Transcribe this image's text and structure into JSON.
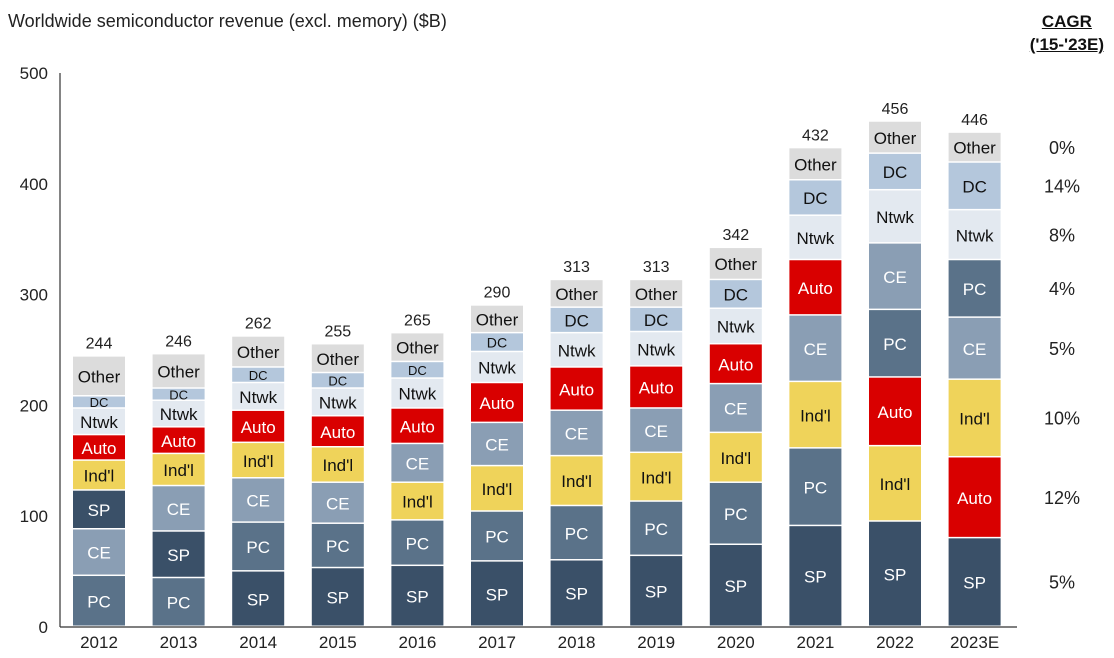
{
  "chart_data": {
    "type": "bar",
    "stacked": true,
    "title": "Worldwide semiconductor revenue (excl. memory) ($B)",
    "xlabel": "",
    "ylabel": "",
    "ylim": [
      0,
      500
    ],
    "yticks": [
      0,
      100,
      200,
      300,
      400,
      500
    ],
    "grid": false,
    "legend": "none (segment labels inside bars)",
    "categories": [
      "2012",
      "2013",
      "2014",
      "2015",
      "2016",
      "2017",
      "2018",
      "2019",
      "2020",
      "2021",
      "2022",
      "2023E"
    ],
    "totals": [
      244,
      246,
      262,
      255,
      265,
      290,
      313,
      313,
      342,
      432,
      456,
      446
    ],
    "segment_colors": {
      "SP": "#3a5068",
      "PC": "#5a7289",
      "CE": "#8a9eb4",
      "Ind'l": "#efd35a",
      "Auto": "#d90000",
      "Ntwk": "#e3e9f0",
      "DC": "#b4c7dc",
      "Other": "#dcdcdc"
    },
    "bars": [
      [
        [
          "PC",
          46
        ],
        [
          "CE",
          42
        ],
        [
          "SP",
          35
        ],
        [
          "Ind'l",
          27
        ],
        [
          "Auto",
          23
        ],
        [
          "Ntwk",
          24
        ],
        [
          "DC",
          11
        ],
        [
          "Other",
          36
        ]
      ],
      [
        [
          "PC",
          44
        ],
        [
          "SP",
          42
        ],
        [
          "CE",
          41
        ],
        [
          "Ind'l",
          29
        ],
        [
          "Auto",
          24
        ],
        [
          "Ntwk",
          24
        ],
        [
          "DC",
          11
        ],
        [
          "Other",
          31
        ]
      ],
      [
        [
          "SP",
          50
        ],
        [
          "PC",
          44
        ],
        [
          "CE",
          40
        ],
        [
          "Ind'l",
          32
        ],
        [
          "Auto",
          29
        ],
        [
          "Ntwk",
          25
        ],
        [
          "DC",
          14
        ],
        [
          "Other",
          28
        ]
      ],
      [
        [
          "SP",
          53
        ],
        [
          "PC",
          40
        ],
        [
          "CE",
          37
        ],
        [
          "Ind'l",
          32
        ],
        [
          "Auto",
          28
        ],
        [
          "Ntwk",
          25
        ],
        [
          "DC",
          14
        ],
        [
          "Other",
          26
        ]
      ],
      [
        [
          "SP",
          55
        ],
        [
          "PC",
          41
        ],
        [
          "Ind'l",
          34
        ],
        [
          "CE",
          35
        ],
        [
          "Auto",
          32
        ],
        [
          "Ntwk",
          27
        ],
        [
          "DC",
          15
        ],
        [
          "Other",
          26
        ]
      ],
      [
        [
          "SP",
          59
        ],
        [
          "PC",
          45
        ],
        [
          "Ind'l",
          41
        ],
        [
          "CE",
          39
        ],
        [
          "Auto",
          36
        ],
        [
          "Ntwk",
          28
        ],
        [
          "DC",
          17
        ],
        [
          "Other",
          25
        ]
      ],
      [
        [
          "SP",
          60
        ],
        [
          "PC",
          49
        ],
        [
          "Ind'l",
          45
        ],
        [
          "CE",
          41
        ],
        [
          "Auto",
          39
        ],
        [
          "Ntwk",
          31
        ],
        [
          "DC",
          23
        ],
        [
          "Other",
          25
        ]
      ],
      [
        [
          "SP",
          64
        ],
        [
          "PC",
          49
        ],
        [
          "Ind'l",
          44
        ],
        [
          "CE",
          40
        ],
        [
          "Auto",
          38
        ],
        [
          "Ntwk",
          31
        ],
        [
          "DC",
          22
        ],
        [
          "Other",
          25
        ]
      ],
      [
        [
          "SP",
          74
        ],
        [
          "PC",
          56
        ],
        [
          "Ind'l",
          45
        ],
        [
          "CE",
          44
        ],
        [
          "Auto",
          36
        ],
        [
          "Ntwk",
          32
        ],
        [
          "DC",
          26
        ],
        [
          "Other",
          29
        ]
      ],
      [
        [
          "SP",
          91
        ],
        [
          "PC",
          70
        ],
        [
          "Ind'l",
          60
        ],
        [
          "CE",
          60
        ],
        [
          "Auto",
          50
        ],
        [
          "Ntwk",
          40
        ],
        [
          "DC",
          32
        ],
        [
          "Other",
          29
        ]
      ],
      [
        [
          "SP",
          95
        ],
        [
          "Ind'l",
          68
        ],
        [
          "Auto",
          62
        ],
        [
          "PC",
          61
        ],
        [
          "CE",
          60
        ],
        [
          "Ntwk",
          48
        ],
        [
          "DC",
          33
        ],
        [
          "Other",
          29
        ]
      ],
      [
        [
          "SP",
          80
        ],
        [
          "Auto",
          73
        ],
        [
          "Ind'l",
          70
        ],
        [
          "CE",
          56
        ],
        [
          "PC",
          52
        ],
        [
          "Ntwk",
          45
        ],
        [
          "DC",
          43
        ],
        [
          "Other",
          27
        ]
      ]
    ],
    "cagr_header": [
      "CAGR",
      "('15-'23E)"
    ],
    "cagr": {
      "Other": "0%",
      "DC": "14%",
      "Ntwk": "8%",
      "PC": "4%",
      "CE": "5%",
      "Ind'l": "10%",
      "Auto": "12%",
      "SP": "5%"
    }
  }
}
